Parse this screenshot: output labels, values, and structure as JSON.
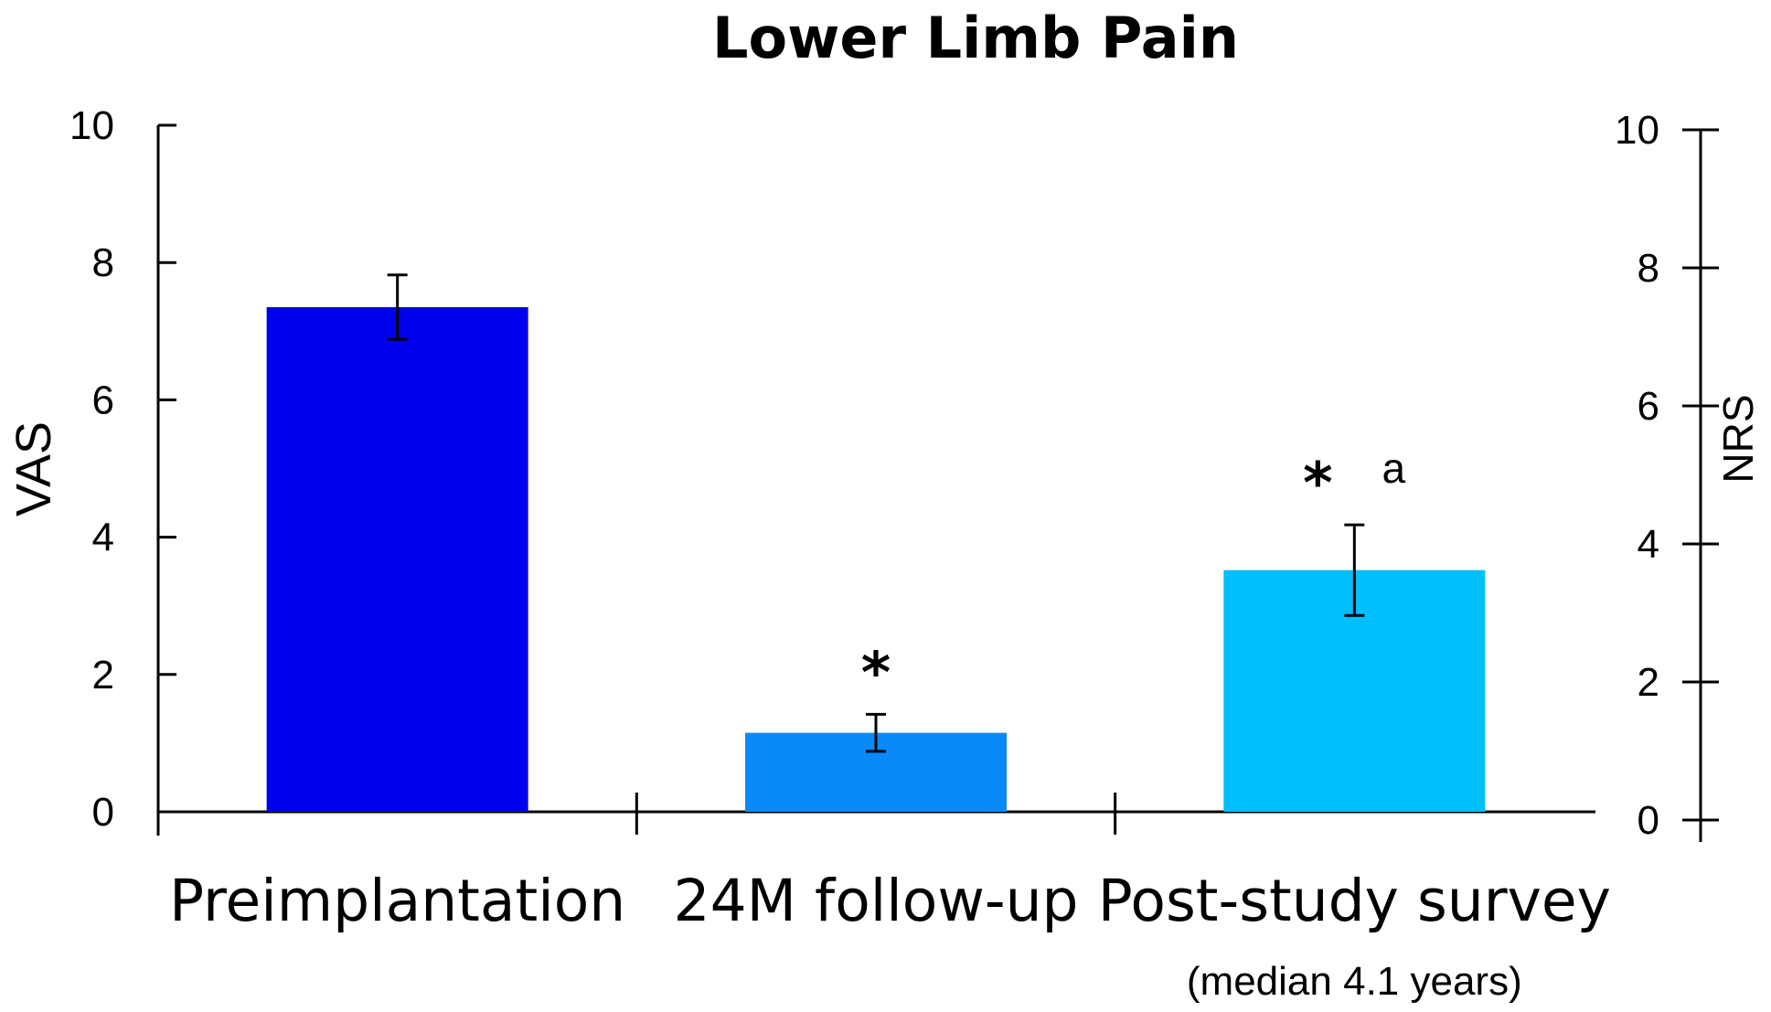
{
  "chart_data": {
    "type": "bar",
    "title": "Lower Limb Pain",
    "categories": [
      "Preimplantation",
      "24M follow-up",
      "Post-study survey"
    ],
    "category_sublabels": [
      "",
      "",
      "(median 4.1 years)"
    ],
    "series": [
      {
        "values": [
          7.35,
          1.15,
          3.52
        ],
        "errors": [
          0.47,
          0.27,
          0.66
        ],
        "colors": [
          "#0000EE",
          "#0A8AF8",
          "#00BFFA"
        ]
      }
    ],
    "annotations": [
      {
        "category": "24M follow-up",
        "text": "*"
      },
      {
        "category": "Post-study survey",
        "text": "*"
      },
      {
        "category": "Post-study survey",
        "text": "a"
      }
    ],
    "ylabel": "VAS",
    "ylabel_right": "NRS",
    "ylim": [
      0,
      10
    ],
    "yticks": [
      "0",
      "2",
      "4",
      "6",
      "8",
      "10"
    ],
    "ylim_right": [
      0,
      10
    ],
    "yticks_right": [
      "0",
      "2",
      "4",
      "6",
      "8",
      "10"
    ],
    "grid": false,
    "legend": "none"
  }
}
